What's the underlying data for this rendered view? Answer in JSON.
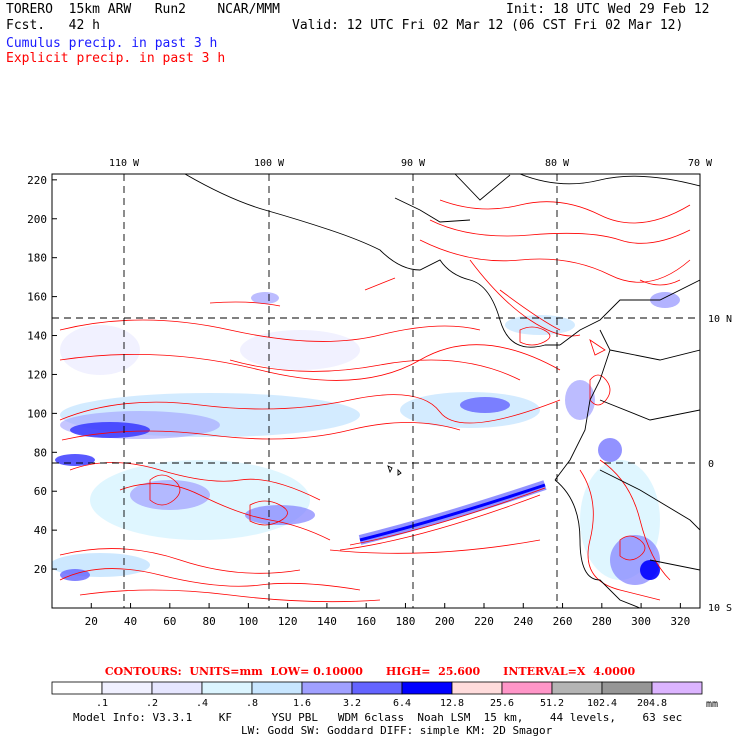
{
  "header": {
    "model": "TORERO  15km ARW   Run2    NCAR/MMM",
    "forecast": "Fcst.   42 h",
    "init": "Init: 18 UTC Wed 29 Feb 12",
    "valid": "Valid: 12 UTC Fri 02 Mar 12 (06 CST Fri 02 Mar 12)",
    "cumulus_label": "Cumulus precip. in past 3 h",
    "explicit_label": "Explicit precip. in past 3 h"
  },
  "map": {
    "lon_labels": [
      "110 W",
      "100 W",
      "90 W",
      "80 W",
      "70 W"
    ],
    "lat_labels": [
      "10 N",
      "0",
      "10 S"
    ],
    "y_ticks": [
      "220",
      "200",
      "180",
      "160",
      "140",
      "120",
      "100",
      "80",
      "60",
      "40",
      "20"
    ],
    "x_ticks": [
      "20",
      "40",
      "60",
      "80",
      "100",
      "120",
      "140",
      "160",
      "180",
      "200",
      "220",
      "240",
      "260",
      "280",
      "300",
      "320"
    ],
    "x_range": [
      0,
      330
    ],
    "y_range": [
      0,
      223
    ],
    "grid_lines": "dashed lat/lon",
    "contour_color": "#ff0000",
    "coast_color": "#000000"
  },
  "contours": {
    "text": "CONTOURS:  UNITS=mm  LOW= 0.10000      HIGH=  25.600      INTERVAL=X  4.0000"
  },
  "colorbar": {
    "labels": [
      ".1",
      ".2",
      ".4",
      ".8",
      "1.6",
      "3.2",
      "6.4",
      "12.8",
      "25.6",
      "51.2",
      "102.4",
      "204.8"
    ],
    "unit": "mm",
    "colors": [
      "#ffffff",
      "#f0f0ff",
      "#e6e6ff",
      "#dcf5ff",
      "#c8e6ff",
      "#a0a0ff",
      "#6464ff",
      "#0000ff",
      "#ffdcdc",
      "#ff96c8",
      "#b4b4b4",
      "#969696",
      "#dcb4ff"
    ]
  },
  "model_info": {
    "line1": "Model Info: V3.3.1    KF      YSU PBL   WDM 6class  Noah LSM  15 km,    44 levels,    63 sec",
    "line2": "LW: Godd SW: Goddard DIFF: simple KM: 2D Smagor"
  }
}
